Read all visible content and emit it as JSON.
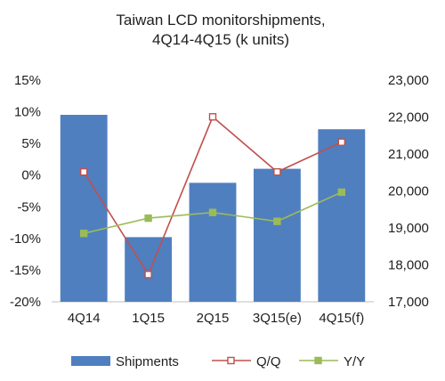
{
  "chart_data": {
    "type": "bar",
    "title_lines": [
      "Taiwan LCD monitorshipments,",
      "4Q14-4Q15 (k units)"
    ],
    "categories": [
      "4Q14",
      "1Q15",
      "2Q15",
      "3Q15(e)",
      "4Q15(f)"
    ],
    "series": [
      {
        "name": "Shipments",
        "type": "bar",
        "axis": "right",
        "color": "#4f7fbf",
        "values": [
          22060,
          18750,
          20220,
          20600,
          21670
        ]
      },
      {
        "name": "Q/Q",
        "type": "line",
        "axis": "left",
        "color": "#c0504d",
        "marker": "hollow-square",
        "values": [
          0.5,
          -15.7,
          9.2,
          0.5,
          5.2
        ]
      },
      {
        "name": "Y/Y",
        "type": "line",
        "axis": "left",
        "color": "#9bbb59",
        "marker": "filled-square",
        "values": [
          -9.2,
          -6.8,
          -5.9,
          -7.3,
          -2.7
        ]
      }
    ],
    "y_left": {
      "ticks": [
        "15%",
        "10%",
        "5%",
        "0%",
        "-5%",
        "-10%",
        "-15%",
        "-20%"
      ],
      "range": [
        -20,
        15
      ]
    },
    "y_right": {
      "ticks": [
        "23,000",
        "22,000",
        "21,000",
        "20,000",
        "19,000",
        "18,000",
        "17,000"
      ],
      "range": [
        17000,
        23000
      ]
    },
    "legend": {
      "placement": "bottom",
      "items": [
        "Shipments",
        "Q/Q",
        "Y/Y"
      ]
    },
    "grid": false
  }
}
